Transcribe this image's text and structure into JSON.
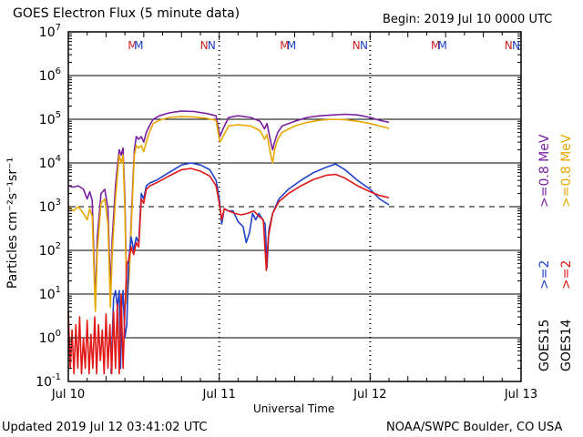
{
  "header": {
    "title": "GOES Electron Flux (5 minute data)",
    "begin": "Begin: 2019 Jul 10 0000 UTC"
  },
  "footer": {
    "updated": "Updated 2019 Jul 12 03:41:02 UTC",
    "credit": "NOAA/SWPC Boulder, CO USA"
  },
  "chart_data": {
    "type": "line",
    "title": "GOES Electron Flux (5 minute data)",
    "xlabel": "Universal Time",
    "ylabel": "Particles cm⁻²s⁻¹sr⁻¹",
    "yscale": "log",
    "ylim": [
      0.1,
      10000000
    ],
    "xlim": [
      0,
      72
    ],
    "x_unit": "hours since 2019 Jul 10 0000 UTC",
    "x_ticks": [
      {
        "x": 0,
        "label": "Jul 10"
      },
      {
        "x": 24,
        "label": "Jul 11"
      },
      {
        "x": 48,
        "label": "Jul 12"
      },
      {
        "x": 72,
        "label": "Jul 13"
      }
    ],
    "y_ticks": [
      {
        "v": 0.1,
        "base": "10",
        "exp": "-1"
      },
      {
        "v": 1,
        "base": "10",
        "exp": "0"
      },
      {
        "v": 10,
        "base": "10",
        "exp": "1"
      },
      {
        "v": 100,
        "base": "10",
        "exp": "2"
      },
      {
        "v": 1000,
        "base": "10",
        "exp": "3"
      },
      {
        "v": 10000,
        "base": "10",
        "exp": "4"
      },
      {
        "v": 100000,
        "base": "10",
        "exp": "5"
      },
      {
        "v": 1000000,
        "base": "10",
        "exp": "6"
      },
      {
        "v": 10000000,
        "base": "10",
        "exp": "7"
      }
    ],
    "threshold": {
      "value": 1000,
      "style": "dashed"
    },
    "day_boundaries": [
      24,
      48
    ],
    "mn_markers": [
      {
        "x": 10.2,
        "text": "M",
        "color": "#d42020"
      },
      {
        "x": 11.2,
        "text": "M",
        "color": "#2040c8"
      },
      {
        "x": 21.6,
        "text": "N",
        "color": "#d42020"
      },
      {
        "x": 22.8,
        "text": "N",
        "color": "#2040c8"
      },
      {
        "x": 34.4,
        "text": "M",
        "color": "#d42020"
      },
      {
        "x": 35.5,
        "text": "M",
        "color": "#2040c8"
      },
      {
        "x": 45.8,
        "text": "N",
        "color": "#d42020"
      },
      {
        "x": 47.0,
        "text": "N",
        "color": "#2040c8"
      },
      {
        "x": 58.4,
        "text": "M",
        "color": "#d42020"
      },
      {
        "x": 59.5,
        "text": "M",
        "color": "#2040c8"
      },
      {
        "x": 70.0,
        "text": "N",
        "color": "#d42020"
      },
      {
        "x": 71.2,
        "text": "N",
        "color": "#2040c8"
      }
    ],
    "legend": {
      "placement": "right-vertical",
      "groups": [
        {
          "sat": "GOES15",
          "items": [
            {
              "label": ">=2",
              "color": "#2040c8"
            },
            {
              "label": ">=0.8 MeV",
              "color": "#7a1fa0"
            }
          ]
        },
        {
          "sat": "GOES14",
          "items": [
            {
              "label": ">=2",
              "color": "#e01818"
            },
            {
              "label": ">=0.8 MeV",
              "color": "#e8a800"
            }
          ]
        }
      ]
    },
    "series": [
      {
        "name": "GOES15 >=0.8 MeV",
        "color": "#7a1fa0",
        "points": [
          [
            0,
            3000
          ],
          [
            0.8,
            2800
          ],
          [
            1.6,
            3000
          ],
          [
            2.4,
            2500
          ],
          [
            3.0,
            1500
          ],
          [
            3.4,
            2200
          ],
          [
            3.8,
            1400
          ],
          [
            4.3,
            6
          ],
          [
            4.6,
            200
          ],
          [
            5.2,
            2000
          ],
          [
            5.8,
            2500
          ],
          [
            6.3,
            900
          ],
          [
            6.7,
            12
          ],
          [
            7.0,
            200
          ],
          [
            7.5,
            3000
          ],
          [
            7.8,
            8000
          ],
          [
            8.1,
            20000
          ],
          [
            8.4,
            15000
          ],
          [
            8.7,
            22000
          ],
          [
            9.0,
            1500
          ],
          [
            9.3,
            9
          ],
          [
            9.7,
            40
          ],
          [
            10.1,
            1000
          ],
          [
            10.5,
            20000
          ],
          [
            10.8,
            40000
          ],
          [
            11.2,
            35000
          ],
          [
            11.6,
            40000
          ],
          [
            12.0,
            30000
          ],
          [
            12.4,
            50000
          ],
          [
            12.9,
            70000
          ],
          [
            13.5,
            100000
          ],
          [
            14.5,
            120000
          ],
          [
            16,
            140000
          ],
          [
            18,
            155000
          ],
          [
            20,
            150000
          ],
          [
            22,
            135000
          ],
          [
            23.5,
            120000
          ],
          [
            24.1,
            40000
          ],
          [
            24.6,
            60000
          ],
          [
            25.5,
            110000
          ],
          [
            27,
            120000
          ],
          [
            29,
            110000
          ],
          [
            30.5,
            90000
          ],
          [
            31.2,
            60000
          ],
          [
            31.6,
            80000
          ],
          [
            32.2,
            30000
          ],
          [
            32.5,
            20000
          ],
          [
            32.8,
            30000
          ],
          [
            33.3,
            50000
          ],
          [
            34,
            70000
          ],
          [
            36,
            90000
          ],
          [
            38,
            110000
          ],
          [
            40,
            120000
          ],
          [
            42,
            125000
          ],
          [
            44,
            130000
          ],
          [
            46,
            125000
          ],
          [
            48,
            110000
          ],
          [
            49.5,
            95000
          ],
          [
            51,
            85000
          ]
        ]
      },
      {
        "name": "GOES14 >=0.8 MeV",
        "color": "#e8a800",
        "points": [
          [
            0,
            1000
          ],
          [
            0.8,
            800
          ],
          [
            1.6,
            1000
          ],
          [
            2.4,
            700
          ],
          [
            3.0,
            500
          ],
          [
            3.4,
            900
          ],
          [
            3.8,
            600
          ],
          [
            4.3,
            4
          ],
          [
            4.6,
            100
          ],
          [
            5.2,
            1200
          ],
          [
            5.8,
            1500
          ],
          [
            6.3,
            400
          ],
          [
            6.7,
            5
          ],
          [
            7.0,
            100
          ],
          [
            7.5,
            1500
          ],
          [
            7.8,
            5000
          ],
          [
            8.1,
            15000
          ],
          [
            8.4,
            10000
          ],
          [
            8.7,
            15000
          ],
          [
            9.0,
            800
          ],
          [
            9.3,
            6
          ],
          [
            9.7,
            30
          ],
          [
            10.1,
            700
          ],
          [
            10.5,
            15000
          ],
          [
            10.8,
            25000
          ],
          [
            11.2,
            22000
          ],
          [
            11.6,
            25000
          ],
          [
            12.0,
            18000
          ],
          [
            12.4,
            30000
          ],
          [
            12.9,
            50000
          ],
          [
            13.5,
            80000
          ],
          [
            14.5,
            95000
          ],
          [
            16,
            110000
          ],
          [
            18,
            115000
          ],
          [
            20,
            112000
          ],
          [
            22,
            105000
          ],
          [
            23.5,
            95000
          ],
          [
            24.1,
            30000
          ],
          [
            24.6,
            40000
          ],
          [
            25.5,
            70000
          ],
          [
            27,
            75000
          ],
          [
            29,
            70000
          ],
          [
            30.5,
            55000
          ],
          [
            31.2,
            35000
          ],
          [
            31.6,
            45000
          ],
          [
            32.2,
            15000
          ],
          [
            32.5,
            10000
          ],
          [
            32.8,
            20000
          ],
          [
            33.3,
            35000
          ],
          [
            34,
            50000
          ],
          [
            36,
            70000
          ],
          [
            38,
            85000
          ],
          [
            40,
            95000
          ],
          [
            42,
            100000
          ],
          [
            44,
            98000
          ],
          [
            46,
            90000
          ],
          [
            48,
            80000
          ],
          [
            49.5,
            70000
          ],
          [
            51,
            62000
          ]
        ]
      },
      {
        "name": "GOES15 >=2 MeV",
        "color": "#2040c8",
        "points": [
          [
            6.8,
            0.15
          ],
          [
            7.2,
            8
          ],
          [
            7.5,
            12
          ],
          [
            7.8,
            5
          ],
          [
            8.1,
            12
          ],
          [
            8.3,
            0.2
          ],
          [
            8.5,
            5
          ],
          [
            8.7,
            12
          ],
          [
            9.0,
            1
          ],
          [
            9.3,
            2
          ],
          [
            9.6,
            60
          ],
          [
            10.0,
            200
          ],
          [
            10.4,
            100
          ],
          [
            10.8,
            200
          ],
          [
            11.2,
            150
          ],
          [
            11.6,
            2000
          ],
          [
            12.0,
            1500
          ],
          [
            12.4,
            3000
          ],
          [
            13.0,
            3500
          ],
          [
            14,
            4000
          ],
          [
            16,
            6000
          ],
          [
            18,
            9000
          ],
          [
            19.5,
            10000
          ],
          [
            21,
            9000
          ],
          [
            22.5,
            7000
          ],
          [
            23.5,
            4000
          ],
          [
            24.0,
            1500
          ],
          [
            24.4,
            400
          ],
          [
            24.8,
            900
          ],
          [
            25.4,
            800
          ],
          [
            26.2,
            800
          ],
          [
            27.0,
            450
          ],
          [
            27.8,
            350
          ],
          [
            28.3,
            150
          ],
          [
            28.8,
            250
          ],
          [
            29.3,
            700
          ],
          [
            29.8,
            500
          ],
          [
            30.3,
            700
          ],
          [
            31.3,
            400
          ],
          [
            31.6,
            40
          ],
          [
            31.9,
            300
          ],
          [
            32.5,
            700
          ],
          [
            33.5,
            1500
          ],
          [
            35,
            2500
          ],
          [
            37,
            4000
          ],
          [
            39,
            6000
          ],
          [
            41,
            8000
          ],
          [
            42.5,
            9500
          ],
          [
            44,
            7000
          ],
          [
            46,
            4000
          ],
          [
            48,
            2500
          ],
          [
            49.5,
            1500
          ],
          [
            51,
            1100
          ]
        ]
      },
      {
        "name": "GOES14 >=2 MeV",
        "color": "#e01818",
        "points": [
          [
            0,
            4
          ],
          [
            0.3,
            0.2
          ],
          [
            0.6,
            1.5
          ],
          [
            0.9,
            0.15
          ],
          [
            1.2,
            2
          ],
          [
            1.5,
            0.2
          ],
          [
            1.8,
            3
          ],
          [
            2.1,
            0.15
          ],
          [
            2.4,
            1
          ],
          [
            2.7,
            0.2
          ],
          [
            3.0,
            2.5
          ],
          [
            3.3,
            0.15
          ],
          [
            3.6,
            1.2
          ],
          [
            3.9,
            0.2
          ],
          [
            4.2,
            3
          ],
          [
            4.5,
            0.15
          ],
          [
            4.8,
            2
          ],
          [
            5.1,
            0.3
          ],
          [
            5.4,
            1.5
          ],
          [
            5.7,
            0.15
          ],
          [
            6.0,
            3.5
          ],
          [
            6.3,
            0.2
          ],
          [
            6.6,
            2
          ],
          [
            6.9,
            0.15
          ],
          [
            7.2,
            4
          ],
          [
            7.5,
            0.2
          ],
          [
            7.8,
            6
          ],
          [
            8.1,
            0.15
          ],
          [
            8.4,
            10
          ],
          [
            8.7,
            0.2
          ],
          [
            9.0,
            4
          ],
          [
            9.3,
            50
          ],
          [
            9.6,
            60
          ],
          [
            10.0,
            120
          ],
          [
            10.4,
            80
          ],
          [
            10.8,
            150
          ],
          [
            11.2,
            120
          ],
          [
            11.6,
            1500
          ],
          [
            12.0,
            1200
          ],
          [
            12.4,
            2500
          ],
          [
            13.0,
            3000
          ],
          [
            14,
            3500
          ],
          [
            16,
            5000
          ],
          [
            18,
            7000
          ],
          [
            19.5,
            7500
          ],
          [
            21,
            6500
          ],
          [
            22.5,
            5000
          ],
          [
            23.5,
            3000
          ],
          [
            24.0,
            1200
          ],
          [
            24.4,
            500
          ],
          [
            24.8,
            900
          ],
          [
            25.5,
            800
          ],
          [
            26.5,
            700
          ],
          [
            27.5,
            650
          ],
          [
            28.5,
            700
          ],
          [
            29.5,
            800
          ],
          [
            30.3,
            600
          ],
          [
            31.0,
            500
          ],
          [
            31.3,
            100
          ],
          [
            31.5,
            35
          ],
          [
            31.8,
            200
          ],
          [
            32.5,
            700
          ],
          [
            33.5,
            1300
          ],
          [
            35,
            2000
          ],
          [
            37,
            3000
          ],
          [
            39,
            4200
          ],
          [
            41,
            5200
          ],
          [
            42.5,
            5500
          ],
          [
            44,
            4500
          ],
          [
            46,
            3000
          ],
          [
            48,
            2200
          ],
          [
            49.5,
            1800
          ],
          [
            51,
            1600
          ]
        ]
      }
    ]
  }
}
